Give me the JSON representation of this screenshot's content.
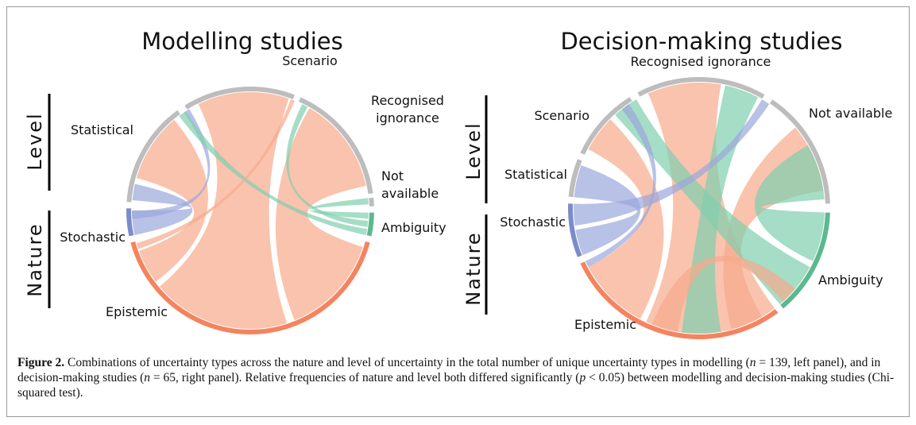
{
  "panels": [
    {
      "title": "Modelling studies",
      "level_label": "Level",
      "nature_label": "Nature",
      "segments": {
        "scenario": [
          "Scenario"
        ],
        "recognised": [
          "Recognised",
          "ignorance"
        ],
        "not_available": [
          "Not",
          "available"
        ],
        "ambiguity": [
          "Ambiguity"
        ],
        "epistemic": [
          "Epistemic"
        ],
        "stochastic": [
          "Stochastic"
        ],
        "statistical": [
          "Statistical"
        ]
      }
    },
    {
      "title": "Decision-making studies",
      "level_label": "Level",
      "nature_label": "Nature",
      "segments": {
        "scenario": [
          "Scenario"
        ],
        "recognised": [
          "Recognised ignorance"
        ],
        "not_available": [
          "Not available"
        ],
        "ambiguity": [
          "Ambiguity"
        ],
        "epistemic": [
          "Epistemic"
        ],
        "stochastic": [
          "Stochastic"
        ],
        "statistical": [
          "Statistical"
        ]
      }
    }
  ],
  "caption": {
    "label": "Figure 2.",
    "parts": [
      " Combinations of uncertainty types across the nature and level of uncertainty in the total number of unique uncertainty types in modelling (",
      "n",
      " = 139, left panel), and in decision-making studies (",
      "n",
      " = 65, right panel). Relative frequencies of nature and level both differed significantly (",
      "p",
      " < 0.05) between modelling and decision-making studies (Chi-squared test)."
    ]
  }
}
